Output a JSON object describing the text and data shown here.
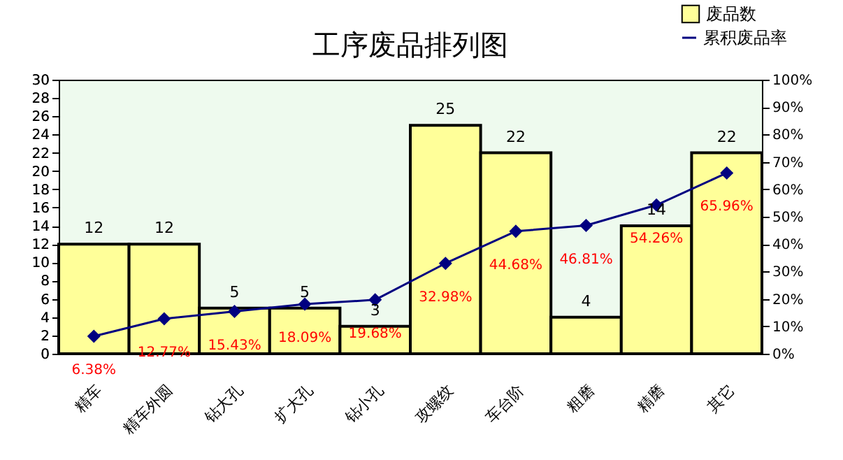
{
  "chart_data": {
    "type": "bar",
    "title": "工序废品排列图",
    "categories": [
      "精车",
      "精车外圆",
      "钻大孔",
      "扩大孔",
      "钻小孔",
      "攻螺纹",
      "车台阶",
      "粗磨",
      "精磨",
      "其它"
    ],
    "series": [
      {
        "name": "废品数",
        "color": "#ffff99",
        "values": [
          12,
          12,
          5,
          5,
          3,
          25,
          22,
          4,
          14,
          22
        ]
      },
      {
        "name": "累积废品率",
        "type": "line",
        "axis": "y2",
        "color": "#000080",
        "marker": "diamond",
        "values": [
          6.38,
          12.77,
          15.43,
          18.09,
          19.68,
          32.98,
          44.68,
          46.81,
          54.26,
          65.96
        ],
        "value_labels": [
          "6.38%",
          "12.77%",
          "15.43%",
          "18.09%",
          "19.68%",
          "32.98%",
          "44.68%",
          "46.81%",
          "54.26%",
          "65.96%"
        ]
      }
    ],
    "ylim": [
      0,
      30
    ],
    "yticks": [
      0,
      2,
      4,
      6,
      8,
      10,
      12,
      14,
      16,
      18,
      20,
      22,
      24,
      26,
      28,
      30
    ],
    "y2lim": [
      0,
      100
    ],
    "y2ticks": [
      {
        "value": 0,
        "label": "0%"
      },
      {
        "value": 10,
        "label": "10%"
      },
      {
        "value": 20,
        "label": "20%"
      },
      {
        "value": 30,
        "label": "30%"
      },
      {
        "value": 40,
        "label": "40%"
      },
      {
        "value": 50,
        "label": "50%"
      },
      {
        "value": 60,
        "label": "60%"
      },
      {
        "value": 70,
        "label": "70%"
      },
      {
        "value": 80,
        "label": "80%"
      },
      {
        "value": 90,
        "label": "90%"
      },
      {
        "value": 100,
        "label": "100%"
      }
    ],
    "data_labels": true,
    "legend": "top right",
    "grid": false
  }
}
